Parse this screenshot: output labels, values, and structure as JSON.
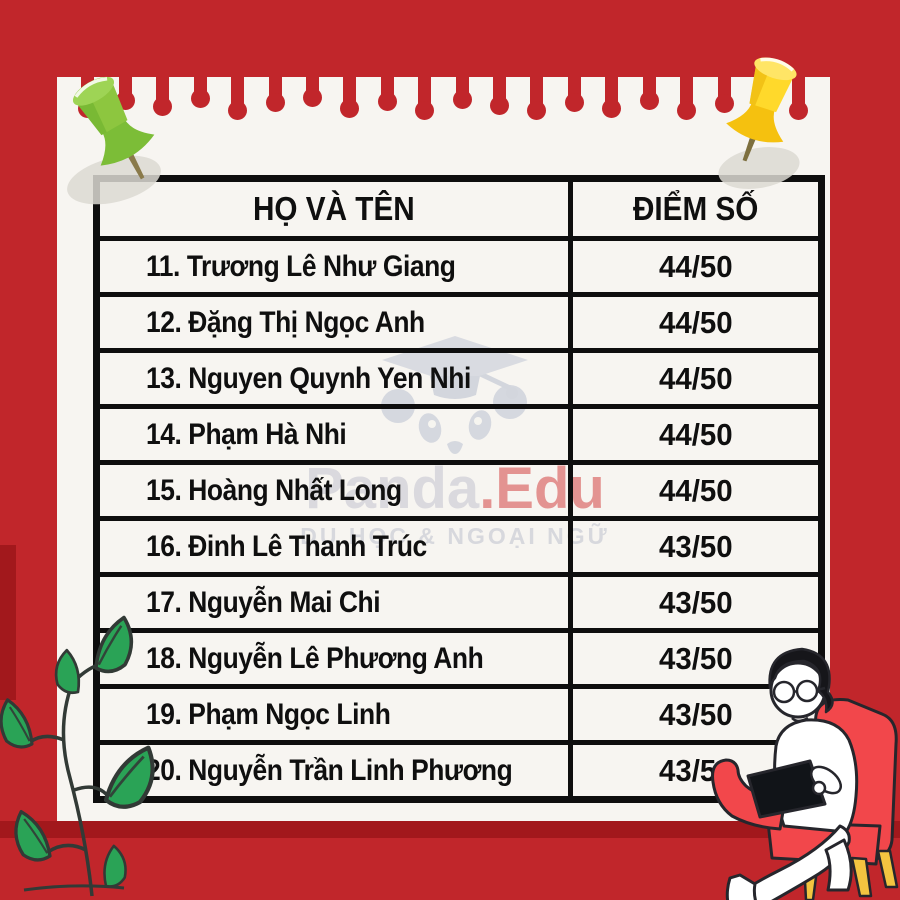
{
  "table": {
    "headers": [
      "HỌ VÀ TÊN",
      "ĐIỂM SỐ"
    ],
    "rows": [
      {
        "name": "11. Trương Lê Như Giang",
        "score": "44/50"
      },
      {
        "name": "12. Đặng Thị Ngọc Anh",
        "score": "44/50"
      },
      {
        "name": "13. Nguyen Quynh Yen Nhi",
        "score": "44/50"
      },
      {
        "name": "14. Phạm Hà Nhi",
        "score": "44/50"
      },
      {
        "name": "15. Hoàng Nhất Long",
        "score": "44/50"
      },
      {
        "name": "16. Đinh Lê Thanh Trúc",
        "score": "43/50"
      },
      {
        "name": "17. Nguyễn Mai Chi",
        "score": "43/50"
      },
      {
        "name": "18. Nguyễn Lê Phương Anh",
        "score": "43/50"
      },
      {
        "name": "19. Phạm Ngọc Linh",
        "score": "43/50"
      },
      {
        "name": "20. Nguyễn Trần Linh Phương",
        "score": "43/50"
      }
    ]
  },
  "watermark": {
    "brand_gray": "Panda",
    "brand_red": ".Edu",
    "tagline": "DU HỌC & NGOẠI NGỮ",
    "logo": "panda-graduation-cap-icon"
  },
  "decor": {
    "background_color": "#c1262b",
    "dark_accent_color": "#a2181c",
    "card_color": "#f7f5f1",
    "table_line_color": "#0e0e0e",
    "drip_count": 20,
    "pin_left": {
      "icon": "green-pushpin-icon",
      "color": "#8dc63f"
    },
    "pin_right": {
      "icon": "yellow-pushpin-icon",
      "color": "#ffd92b"
    },
    "plant": {
      "icon": "green-plant-illustration",
      "leaf_color": "#2aa356"
    },
    "person": {
      "icon": "person-laptop-armchair-illustration",
      "chair_color": "#f2474b",
      "leg_color": "#f3c440"
    }
  }
}
